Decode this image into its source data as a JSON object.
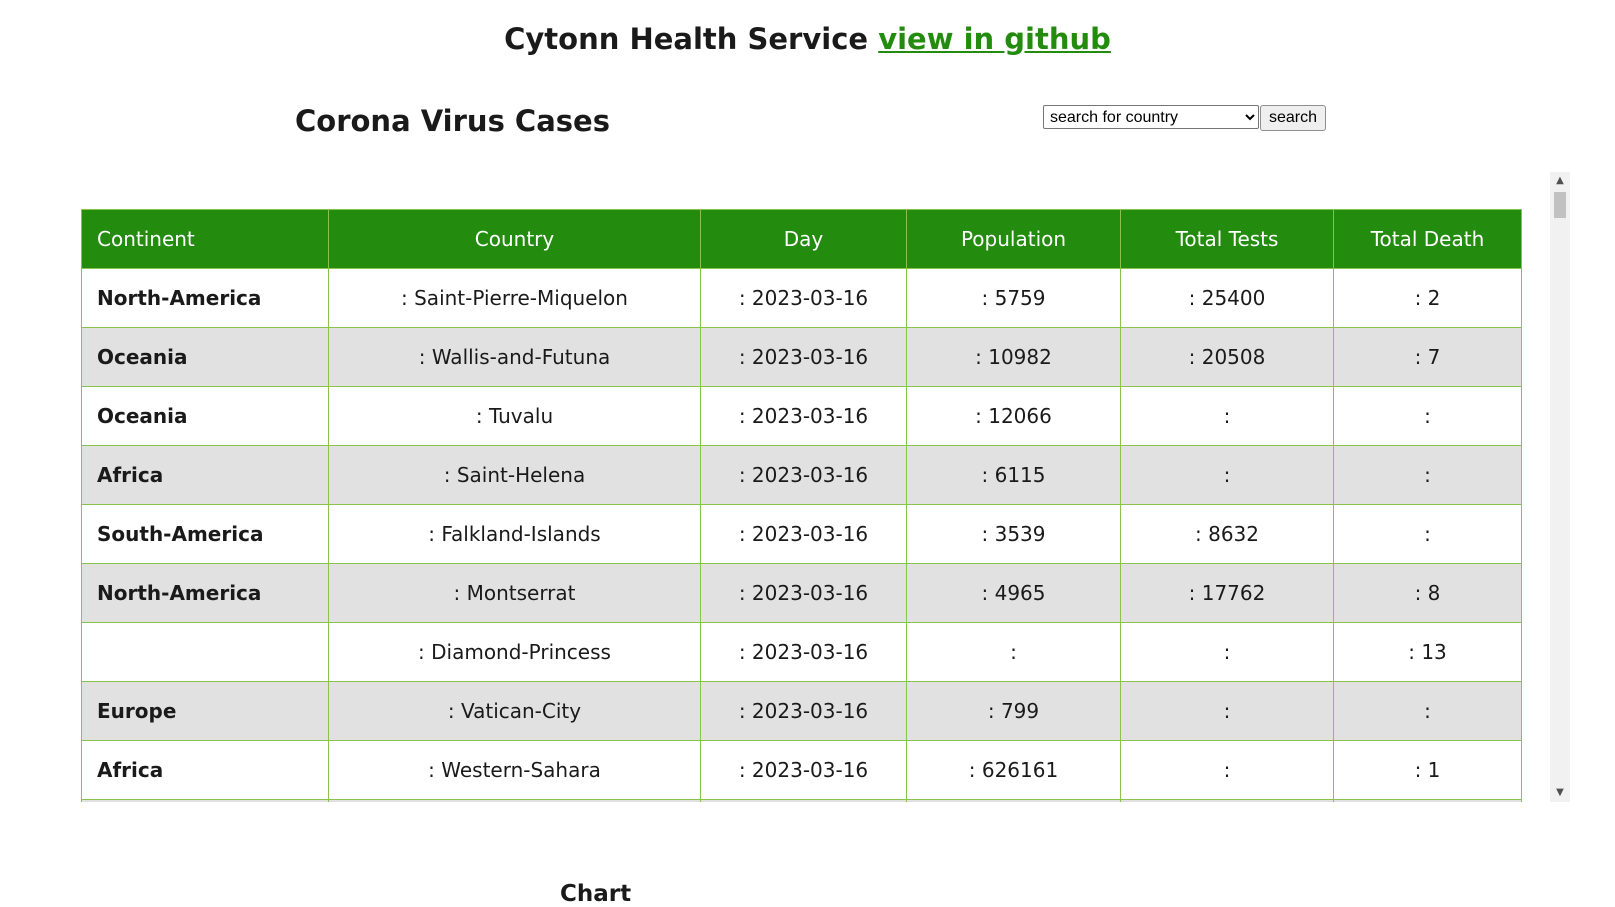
{
  "header": {
    "title": "Cytonn Health Service",
    "github_link": "view in github"
  },
  "main": {
    "title": "Corona Virus Cases",
    "chart_title": "Chart"
  },
  "search": {
    "selected": "search for country",
    "button": "search"
  },
  "table": {
    "columns": [
      "Continent",
      "Country",
      "Day",
      "Population",
      "Total Tests",
      "Total Death"
    ],
    "rows": [
      [
        "North-America",
        ": Saint-Pierre-Miquelon",
        ": 2023-03-16",
        ": 5759",
        ": 25400",
        ": 2"
      ],
      [
        "Oceania",
        ": Wallis-and-Futuna",
        ": 2023-03-16",
        ": 10982",
        ": 20508",
        ": 7"
      ],
      [
        "Oceania",
        ": Tuvalu",
        ": 2023-03-16",
        ": 12066",
        ":",
        ":"
      ],
      [
        "Africa",
        ": Saint-Helena",
        ": 2023-03-16",
        ": 6115",
        ":",
        ":"
      ],
      [
        "South-America",
        ": Falkland-Islands",
        ": 2023-03-16",
        ": 3539",
        ": 8632",
        ":"
      ],
      [
        "North-America",
        ": Montserrat",
        ": 2023-03-16",
        ": 4965",
        ": 17762",
        ": 8"
      ],
      [
        "",
        ": Diamond-Princess",
        ": 2023-03-16",
        ":",
        ":",
        ": 13"
      ],
      [
        "Europe",
        ": Vatican-City",
        ": 2023-03-16",
        ": 799",
        ":",
        ":"
      ],
      [
        "Africa",
        ": Western-Sahara",
        ": 2023-03-16",
        ": 626161",
        ":",
        ": 1"
      ],
      [
        "",
        "",
        "",
        "",
        "",
        ""
      ]
    ]
  },
  "colors": {
    "accent": "#238c0e",
    "row_alt": "#e1e1e1",
    "border": "#8bc34a"
  }
}
